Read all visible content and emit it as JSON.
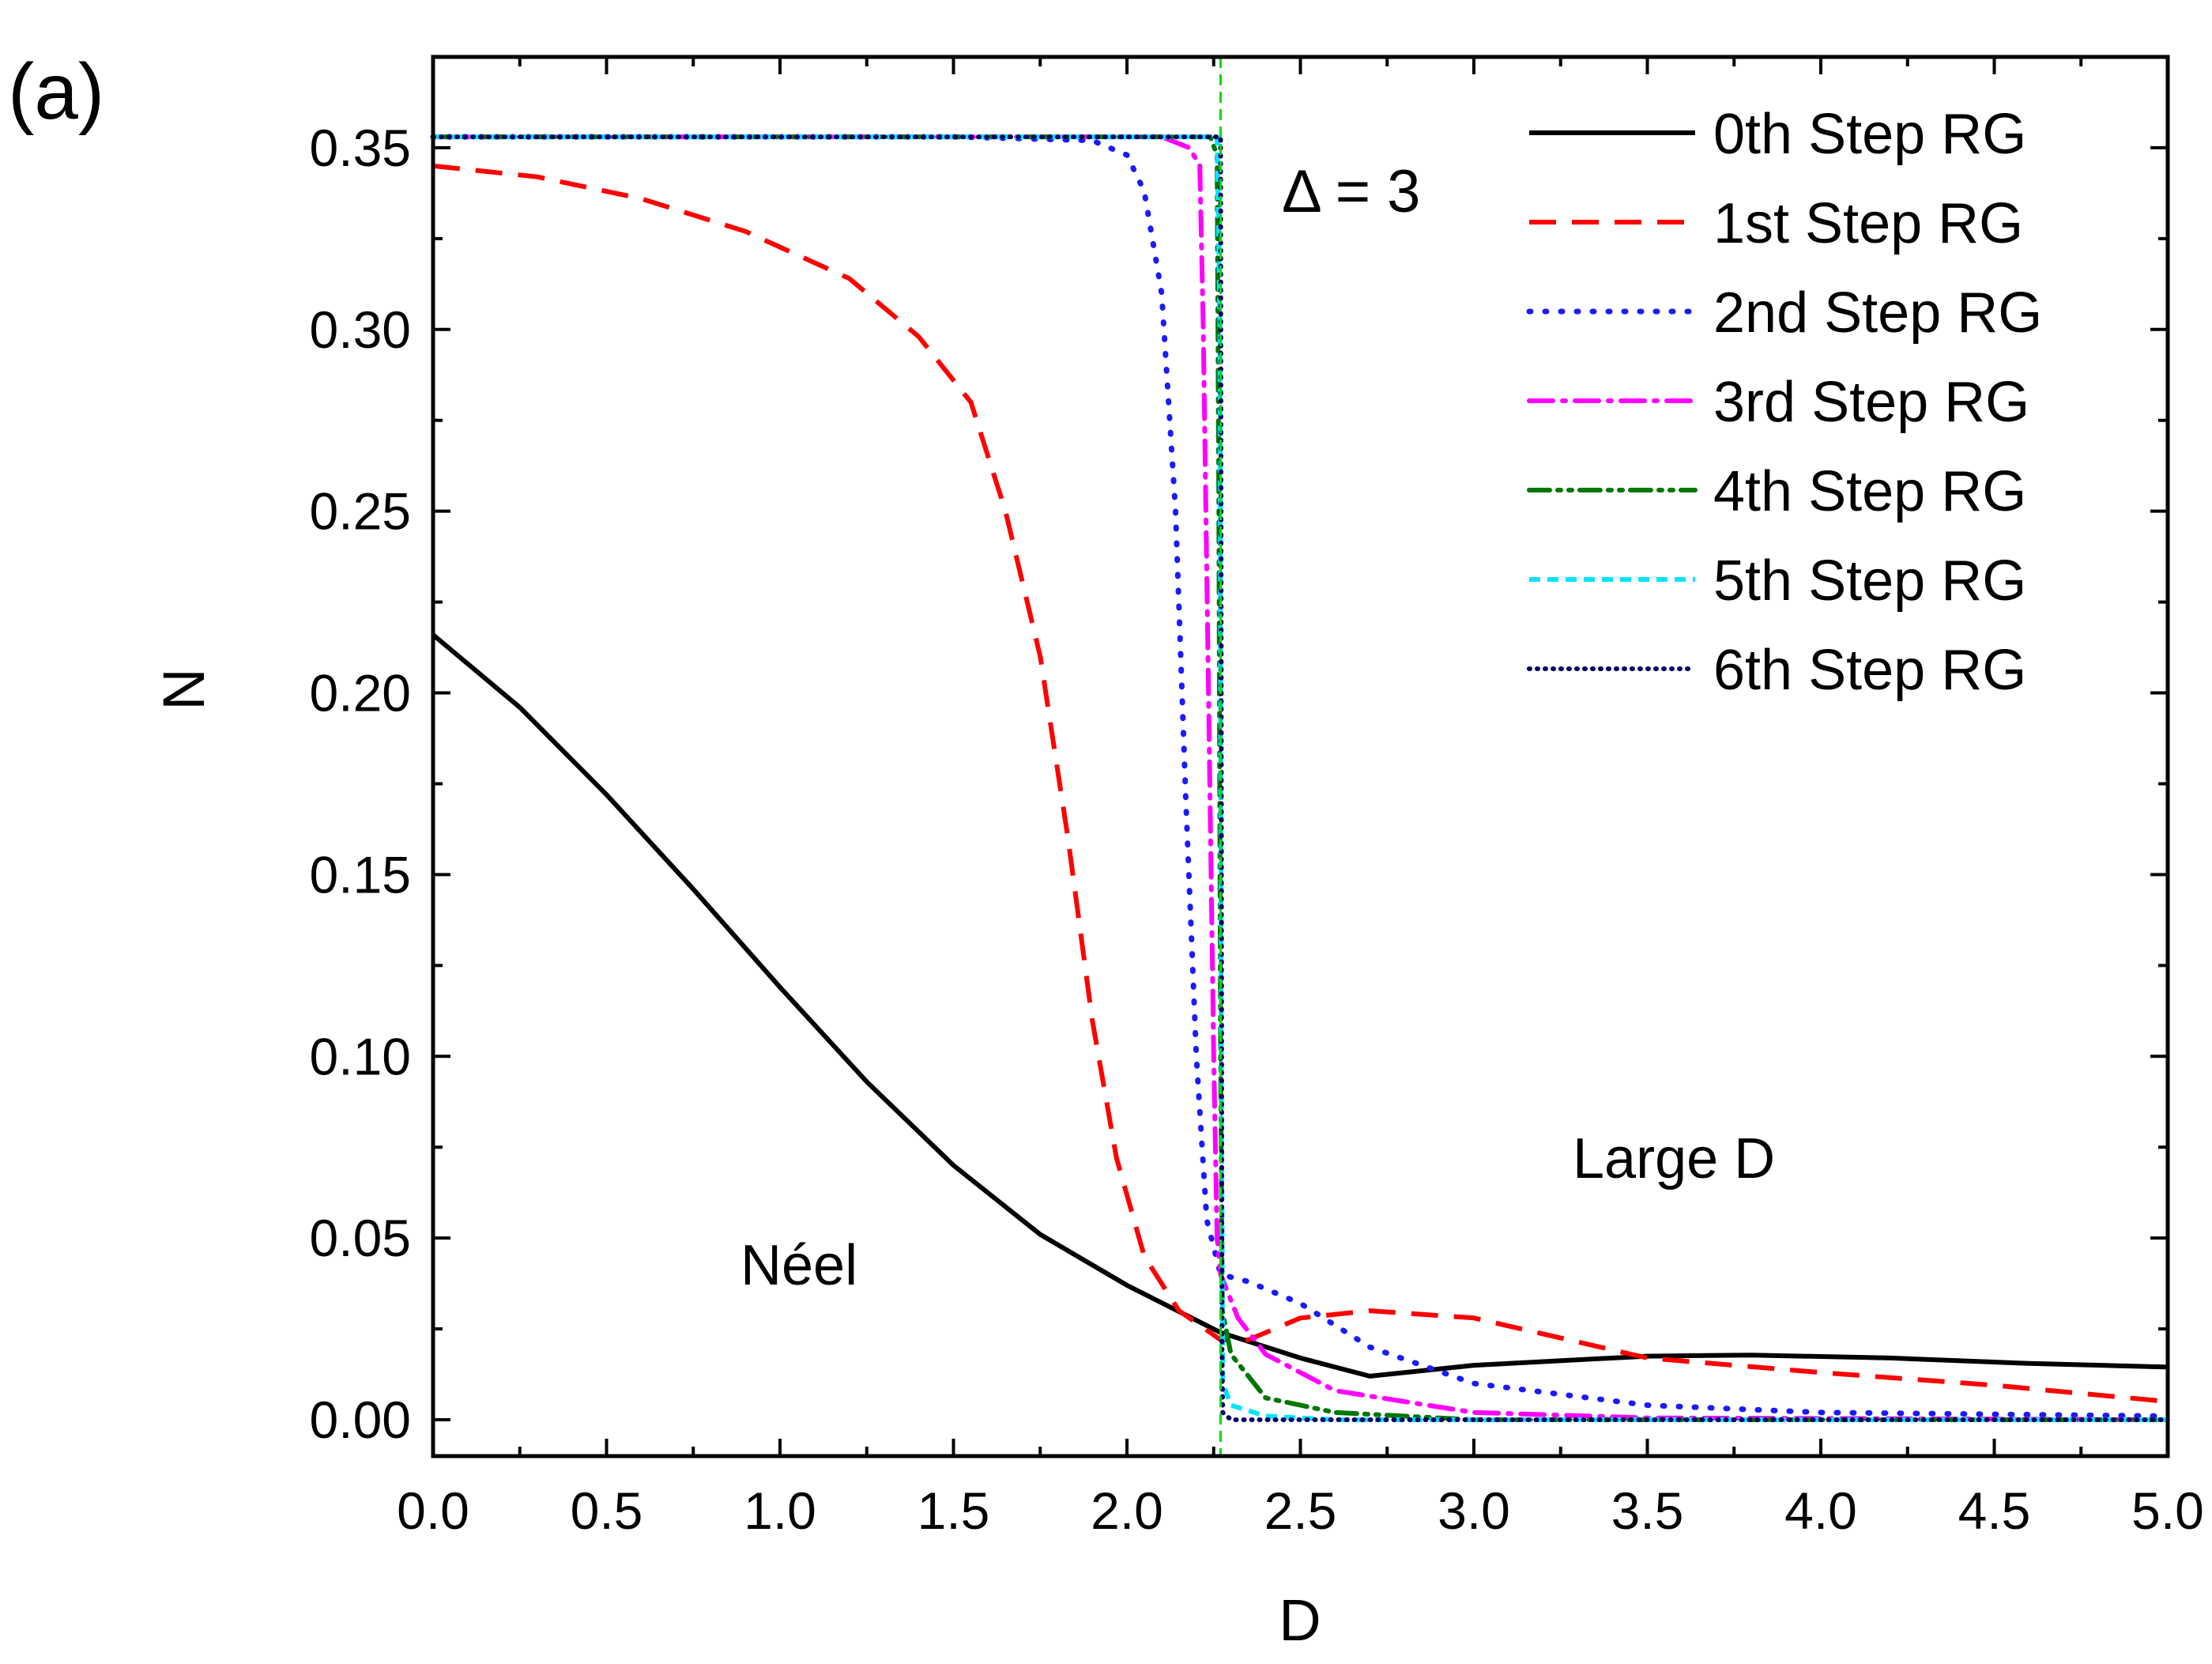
{
  "chart_data": {
    "type": "line",
    "panel_label": "(a)",
    "xlabel": "D",
    "ylabel": "N",
    "xlim": [
      0.0,
      5.0
    ],
    "ylim": [
      -0.01,
      0.375
    ],
    "x_ticks": [
      0.0,
      0.5,
      1.0,
      1.5,
      2.0,
      2.5,
      3.0,
      3.5,
      4.0,
      4.5,
      5.0
    ],
    "x_tick_labels": [
      "0.0",
      "0.5",
      "1.0",
      "1.5",
      "2.0",
      "2.5",
      "3.0",
      "3.5",
      "4.0",
      "4.5",
      "5.0"
    ],
    "y_ticks": [
      0.0,
      0.05,
      0.1,
      0.15,
      0.2,
      0.25,
      0.3,
      0.35
    ],
    "y_tick_labels": [
      "0.00",
      "0.05",
      "0.10",
      "0.15",
      "0.20",
      "0.25",
      "0.30",
      "0.35"
    ],
    "critical_line": {
      "x": 2.27,
      "color": "#00dd00"
    },
    "legend_position": "top-right",
    "annotations": {
      "delta": "Δ = 3",
      "neel": "Néel",
      "large_d": "Large D"
    },
    "series": [
      {
        "name": "0th  Step RG",
        "color": "#000000",
        "dash": "solid",
        "points": [
          [
            0,
            0.216
          ],
          [
            0.25,
            0.196
          ],
          [
            0.5,
            0.172
          ],
          [
            0.75,
            0.146
          ],
          [
            1.0,
            0.119
          ],
          [
            1.25,
            0.093
          ],
          [
            1.5,
            0.07
          ],
          [
            1.75,
            0.051
          ],
          [
            2.0,
            0.037
          ],
          [
            2.27,
            0.024
          ],
          [
            2.5,
            0.017
          ],
          [
            2.7,
            0.012
          ],
          [
            3.0,
            0.015
          ],
          [
            3.5,
            0.0175
          ],
          [
            3.8,
            0.0178
          ],
          [
            4.2,
            0.017
          ],
          [
            4.6,
            0.0155
          ],
          [
            5.0,
            0.0145
          ]
        ]
      },
      {
        "name": "1st  Step RG",
        "color": "#ff0000",
        "dash": "dash",
        "points": [
          [
            0,
            0.345
          ],
          [
            0.3,
            0.342
          ],
          [
            0.6,
            0.336
          ],
          [
            0.9,
            0.327
          ],
          [
            1.2,
            0.314
          ],
          [
            1.4,
            0.298
          ],
          [
            1.55,
            0.28
          ],
          [
            1.65,
            0.25
          ],
          [
            1.75,
            0.21
          ],
          [
            1.83,
            0.16
          ],
          [
            1.9,
            0.11
          ],
          [
            1.97,
            0.072
          ],
          [
            2.05,
            0.045
          ],
          [
            2.15,
            0.03
          ],
          [
            2.27,
            0.022
          ],
          [
            2.35,
            0.022
          ],
          [
            2.5,
            0.028
          ],
          [
            2.7,
            0.03
          ],
          [
            3.0,
            0.028
          ],
          [
            3.5,
            0.017
          ],
          [
            4.0,
            0.013
          ],
          [
            4.5,
            0.0095
          ],
          [
            5.0,
            0.005
          ]
        ]
      },
      {
        "name": "2nd Step RG",
        "color": "#1a1aff",
        "dash": "dot",
        "points": [
          [
            0,
            0.353
          ],
          [
            1.5,
            0.353
          ],
          [
            1.9,
            0.352
          ],
          [
            2.0,
            0.348
          ],
          [
            2.05,
            0.338
          ],
          [
            2.1,
            0.31
          ],
          [
            2.14,
            0.25
          ],
          [
            2.17,
            0.17
          ],
          [
            2.2,
            0.1
          ],
          [
            2.23,
            0.055
          ],
          [
            2.27,
            0.04
          ],
          [
            2.35,
            0.038
          ],
          [
            2.5,
            0.032
          ],
          [
            2.7,
            0.02
          ],
          [
            3.0,
            0.01
          ],
          [
            3.5,
            0.004
          ],
          [
            4.0,
            0.002
          ],
          [
            5.0,
            0.001
          ]
        ]
      },
      {
        "name": "3rd  Step RG",
        "color": "#ff00ff",
        "dash": "dashdot",
        "points": [
          [
            0,
            0.353
          ],
          [
            2.1,
            0.353
          ],
          [
            2.18,
            0.35
          ],
          [
            2.21,
            0.345
          ],
          [
            2.22,
            0.3
          ],
          [
            2.235,
            0.2
          ],
          [
            2.25,
            0.1
          ],
          [
            2.26,
            0.05
          ],
          [
            2.27,
            0.04
          ],
          [
            2.32,
            0.028
          ],
          [
            2.4,
            0.018
          ],
          [
            2.6,
            0.008
          ],
          [
            3.0,
            0.002
          ],
          [
            3.5,
            0.0005
          ],
          [
            5.0,
            0.0
          ]
        ]
      },
      {
        "name": "4th  Step RG",
        "color": "#007700",
        "dash": "dashdotdot",
        "points": [
          [
            0,
            0.353
          ],
          [
            2.24,
            0.353
          ],
          [
            2.26,
            0.348
          ],
          [
            2.265,
            0.25
          ],
          [
            2.27,
            0.1
          ],
          [
            2.275,
            0.03
          ],
          [
            2.3,
            0.018
          ],
          [
            2.4,
            0.006
          ],
          [
            2.6,
            0.002
          ],
          [
            3.0,
            0.0
          ],
          [
            5.0,
            0.0
          ]
        ]
      },
      {
        "name": "5th  Step RG",
        "color": "#00e5ff",
        "dash": "shortdash",
        "points": [
          [
            0,
            0.353
          ],
          [
            2.26,
            0.353
          ],
          [
            2.268,
            0.3
          ],
          [
            2.272,
            0.1
          ],
          [
            2.276,
            0.01
          ],
          [
            2.3,
            0.004
          ],
          [
            2.4,
            0.001
          ],
          [
            2.6,
            0.0
          ],
          [
            5.0,
            0.0
          ]
        ]
      },
      {
        "name": "6th  Step RG",
        "color": "#000066",
        "dash": "densedot",
        "points": [
          [
            0,
            0.353
          ],
          [
            2.27,
            0.353
          ],
          [
            2.272,
            0.2
          ],
          [
            2.274,
            0.02
          ],
          [
            2.276,
            0.002
          ],
          [
            2.3,
            0.0
          ],
          [
            5.0,
            0.0
          ]
        ]
      }
    ]
  }
}
